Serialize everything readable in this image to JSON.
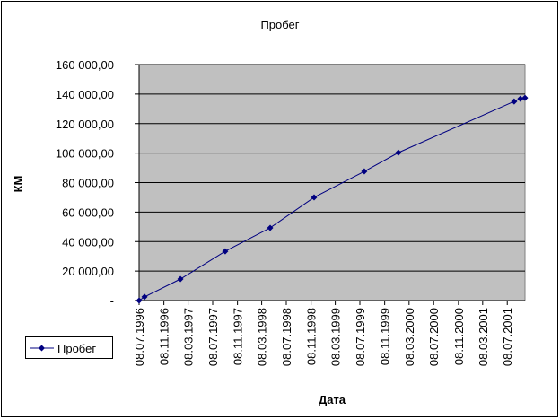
{
  "chart_data": {
    "type": "line",
    "title": "Пробег",
    "x_label": "Дата",
    "y_label": "КМ",
    "x": [
      "1996-07-08",
      "1996-08-04",
      "1997-01-29",
      "1997-09-08",
      "1998-04-19",
      "1998-11-23",
      "1999-07-30",
      "2000-01-15",
      "2001-08-11",
      "2001-09-11",
      "2001-10-04"
    ],
    "series": [
      {
        "name": "Пробег",
        "color": "#000080",
        "values": [
          0,
          2500,
          14600,
          33400,
          49300,
          70000,
          87600,
          100300,
          135000,
          136800,
          137400
        ]
      }
    ],
    "xlim": [
      "1996-07-08",
      "2001-10-04"
    ],
    "xticks": [
      {
        "value": "1996-07-08",
        "label": "08.07.1996"
      },
      {
        "value": "1996-11-08",
        "label": "08.11.1996"
      },
      {
        "value": "1997-03-08",
        "label": "08.03.1997"
      },
      {
        "value": "1997-07-08",
        "label": "08.07.1997"
      },
      {
        "value": "1997-11-08",
        "label": "08.11.1997"
      },
      {
        "value": "1998-03-08",
        "label": "08.03.1998"
      },
      {
        "value": "1998-07-08",
        "label": "08.07.1998"
      },
      {
        "value": "1998-11-08",
        "label": "08.11.1998"
      },
      {
        "value": "1999-03-08",
        "label": "08.03.1999"
      },
      {
        "value": "1999-07-08",
        "label": "08.07.1999"
      },
      {
        "value": "1999-11-08",
        "label": "08.11.1999"
      },
      {
        "value": "2000-03-08",
        "label": "08.03.2000"
      },
      {
        "value": "2000-07-08",
        "label": "08.07.2000"
      },
      {
        "value": "2000-11-08",
        "label": "08.11.2000"
      },
      {
        "value": "2001-03-08",
        "label": "08.03.2001"
      },
      {
        "value": "2001-07-08",
        "label": "08.07.2001"
      }
    ],
    "ylim": [
      0,
      160000
    ],
    "yticks": [
      {
        "value": 0,
        "label": "-"
      },
      {
        "value": 20000,
        "label": "20 000,00"
      },
      {
        "value": 40000,
        "label": "40 000,00"
      },
      {
        "value": 60000,
        "label": "60 000,00"
      },
      {
        "value": 80000,
        "label": "80 000,00"
      },
      {
        "value": 100000,
        "label": "100 000,00"
      },
      {
        "value": 120000,
        "label": "120 000,00"
      },
      {
        "value": 140000,
        "label": "140 000,00"
      },
      {
        "value": 160000,
        "label": "160 000,00"
      }
    ],
    "grid": true,
    "legend": "bottom-left",
    "plot_background": "#c0c0c0"
  }
}
